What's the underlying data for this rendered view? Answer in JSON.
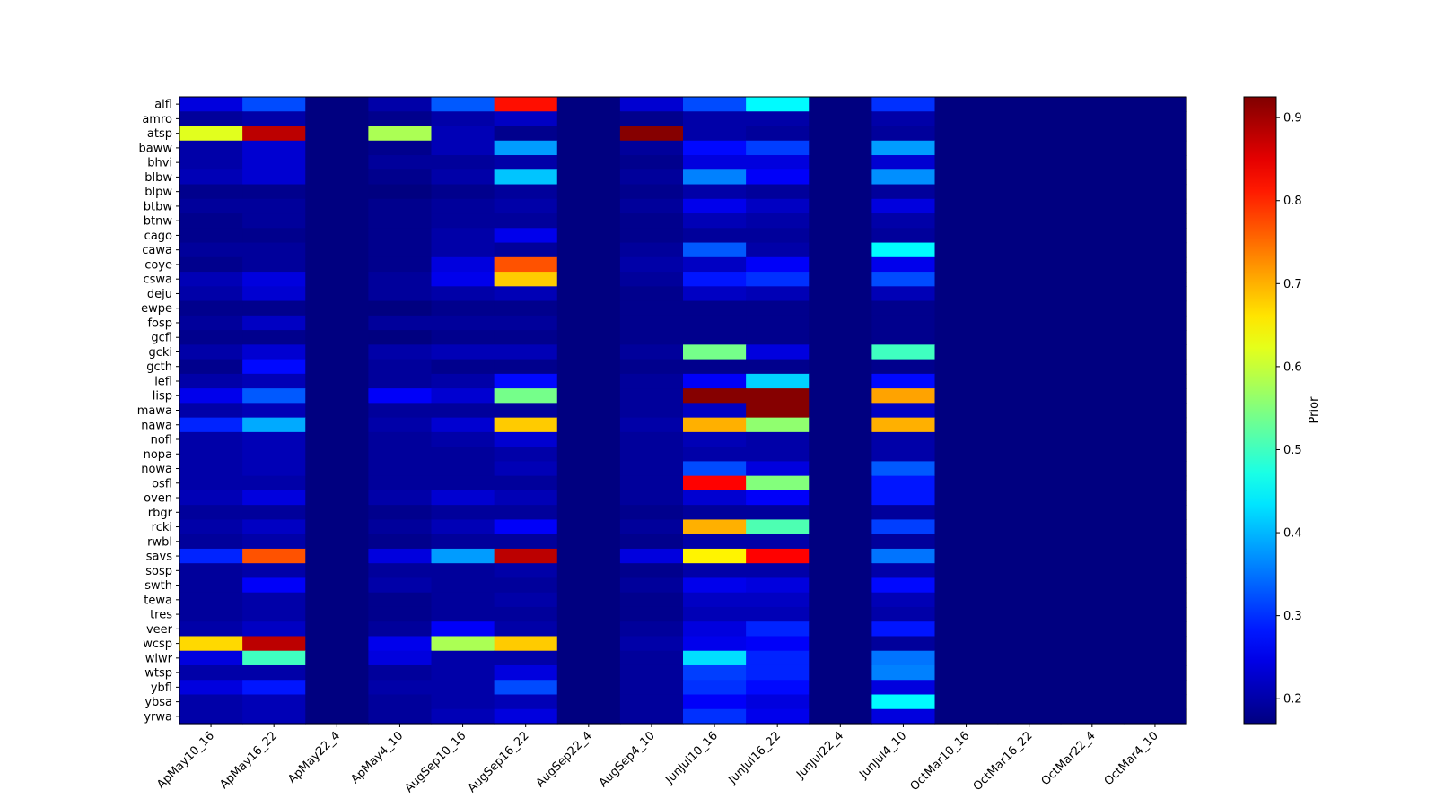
{
  "chart_data": {
    "type": "heatmap",
    "colormap": "jet",
    "colorbar": {
      "label": "Prior",
      "min": 0.17,
      "max": 0.925,
      "ticks": [
        0.2,
        0.3,
        0.4,
        0.5,
        0.6,
        0.7,
        0.8,
        0.9
      ],
      "placement": "right"
    },
    "columns": [
      "ApMay10_16",
      "ApMay16_22",
      "ApMay22_4",
      "ApMay4_10",
      "AugSep10_16",
      "AugSep16_22",
      "AugSep22_4",
      "AugSep4_10",
      "JunJul10_16",
      "JunJul16_22",
      "JunJul22_4",
      "JunJul4_10",
      "OctMar10_16",
      "OctMar16_22",
      "OctMar22_4",
      "OctMar4_10"
    ],
    "rows": [
      "alfl",
      "amro",
      "atsp",
      "baww",
      "bhvi",
      "blbw",
      "blpw",
      "btbw",
      "btnw",
      "cago",
      "cawa",
      "coye",
      "cswa",
      "deju",
      "ewpe",
      "fosp",
      "gcfl",
      "gcki",
      "gcth",
      "lefl",
      "lisp",
      "mawa",
      "nawa",
      "nofl",
      "nopa",
      "nowa",
      "osfl",
      "oven",
      "rbgr",
      "rcki",
      "rwbl",
      "savs",
      "sosp",
      "swth",
      "tewa",
      "tres",
      "veer",
      "wcsp",
      "wiwr",
      "wtsp",
      "ybfl",
      "ybsa",
      "yrwa"
    ],
    "values": [
      [
        0.24,
        0.32,
        0.17,
        0.2,
        0.33,
        0.82,
        0.17,
        0.23,
        0.32,
        0.45,
        0.17,
        0.3,
        0.17,
        0.17,
        0.17,
        0.17
      ],
      [
        0.19,
        0.2,
        0.17,
        0.18,
        0.2,
        0.22,
        0.17,
        0.18,
        0.2,
        0.2,
        0.17,
        0.2,
        0.17,
        0.17,
        0.17,
        0.17
      ],
      [
        0.62,
        0.88,
        0.17,
        0.58,
        0.21,
        0.18,
        0.17,
        0.92,
        0.2,
        0.19,
        0.17,
        0.19,
        0.17,
        0.17,
        0.17,
        0.17
      ],
      [
        0.2,
        0.23,
        0.17,
        0.18,
        0.21,
        0.38,
        0.17,
        0.19,
        0.27,
        0.31,
        0.17,
        0.38,
        0.17,
        0.17,
        0.17,
        0.17
      ],
      [
        0.2,
        0.23,
        0.17,
        0.19,
        0.19,
        0.2,
        0.17,
        0.18,
        0.24,
        0.24,
        0.17,
        0.23,
        0.17,
        0.17,
        0.17,
        0.17
      ],
      [
        0.21,
        0.23,
        0.17,
        0.18,
        0.2,
        0.41,
        0.17,
        0.19,
        0.36,
        0.26,
        0.17,
        0.37,
        0.17,
        0.17,
        0.17,
        0.17
      ],
      [
        0.18,
        0.18,
        0.17,
        0.17,
        0.18,
        0.19,
        0.17,
        0.18,
        0.2,
        0.19,
        0.17,
        0.19,
        0.17,
        0.17,
        0.17,
        0.17
      ],
      [
        0.19,
        0.19,
        0.17,
        0.18,
        0.19,
        0.2,
        0.17,
        0.19,
        0.25,
        0.22,
        0.17,
        0.24,
        0.17,
        0.17,
        0.17,
        0.17
      ],
      [
        0.18,
        0.19,
        0.17,
        0.18,
        0.19,
        0.19,
        0.17,
        0.18,
        0.21,
        0.2,
        0.17,
        0.2,
        0.17,
        0.17,
        0.17,
        0.17
      ],
      [
        0.18,
        0.18,
        0.17,
        0.18,
        0.2,
        0.25,
        0.17,
        0.18,
        0.19,
        0.19,
        0.17,
        0.19,
        0.17,
        0.17,
        0.17,
        0.17
      ],
      [
        0.19,
        0.19,
        0.17,
        0.18,
        0.2,
        0.19,
        0.17,
        0.19,
        0.33,
        0.2,
        0.17,
        0.45,
        0.17,
        0.17,
        0.17,
        0.17
      ],
      [
        0.18,
        0.19,
        0.17,
        0.18,
        0.24,
        0.77,
        0.17,
        0.2,
        0.22,
        0.26,
        0.17,
        0.25,
        0.17,
        0.17,
        0.17,
        0.17
      ],
      [
        0.21,
        0.24,
        0.17,
        0.19,
        0.25,
        0.68,
        0.17,
        0.19,
        0.28,
        0.3,
        0.17,
        0.32,
        0.17,
        0.17,
        0.17,
        0.17
      ],
      [
        0.2,
        0.23,
        0.17,
        0.19,
        0.2,
        0.21,
        0.17,
        0.18,
        0.22,
        0.21,
        0.17,
        0.21,
        0.17,
        0.17,
        0.17,
        0.17
      ],
      [
        0.18,
        0.18,
        0.17,
        0.17,
        0.18,
        0.18,
        0.17,
        0.18,
        0.18,
        0.18,
        0.17,
        0.18,
        0.17,
        0.17,
        0.17,
        0.17
      ],
      [
        0.19,
        0.22,
        0.17,
        0.19,
        0.19,
        0.19,
        0.17,
        0.18,
        0.18,
        0.18,
        0.17,
        0.18,
        0.17,
        0.17,
        0.17,
        0.17
      ],
      [
        0.18,
        0.18,
        0.17,
        0.17,
        0.18,
        0.18,
        0.17,
        0.18,
        0.18,
        0.18,
        0.17,
        0.18,
        0.17,
        0.17,
        0.17,
        0.17
      ],
      [
        0.2,
        0.23,
        0.17,
        0.2,
        0.21,
        0.21,
        0.17,
        0.19,
        0.54,
        0.24,
        0.17,
        0.5,
        0.17,
        0.17,
        0.17,
        0.17
      ],
      [
        0.18,
        0.27,
        0.17,
        0.19,
        0.18,
        0.18,
        0.17,
        0.18,
        0.18,
        0.18,
        0.17,
        0.18,
        0.17,
        0.17,
        0.17,
        0.17
      ],
      [
        0.2,
        0.21,
        0.17,
        0.19,
        0.2,
        0.27,
        0.17,
        0.19,
        0.26,
        0.42,
        0.17,
        0.27,
        0.17,
        0.17,
        0.17,
        0.17
      ],
      [
        0.25,
        0.33,
        0.17,
        0.26,
        0.23,
        0.54,
        0.17,
        0.19,
        0.92,
        0.92,
        0.17,
        0.71,
        0.17,
        0.17,
        0.17,
        0.17
      ],
      [
        0.2,
        0.21,
        0.17,
        0.19,
        0.19,
        0.19,
        0.17,
        0.19,
        0.22,
        0.92,
        0.17,
        0.22,
        0.17,
        0.17,
        0.17,
        0.17
      ],
      [
        0.29,
        0.39,
        0.17,
        0.2,
        0.23,
        0.68,
        0.17,
        0.2,
        0.7,
        0.56,
        0.17,
        0.7,
        0.17,
        0.17,
        0.17,
        0.17
      ],
      [
        0.2,
        0.21,
        0.17,
        0.19,
        0.2,
        0.23,
        0.17,
        0.19,
        0.21,
        0.2,
        0.17,
        0.2,
        0.17,
        0.17,
        0.17,
        0.17
      ],
      [
        0.2,
        0.21,
        0.17,
        0.19,
        0.19,
        0.2,
        0.17,
        0.19,
        0.2,
        0.2,
        0.17,
        0.2,
        0.17,
        0.17,
        0.17,
        0.17
      ],
      [
        0.2,
        0.21,
        0.17,
        0.19,
        0.19,
        0.21,
        0.17,
        0.19,
        0.32,
        0.24,
        0.17,
        0.33,
        0.17,
        0.17,
        0.17,
        0.17
      ],
      [
        0.2,
        0.2,
        0.17,
        0.19,
        0.19,
        0.19,
        0.17,
        0.19,
        0.83,
        0.55,
        0.17,
        0.28,
        0.17,
        0.17,
        0.17,
        0.17
      ],
      [
        0.21,
        0.24,
        0.17,
        0.2,
        0.23,
        0.21,
        0.17,
        0.19,
        0.23,
        0.26,
        0.17,
        0.28,
        0.17,
        0.17,
        0.17,
        0.17
      ],
      [
        0.19,
        0.19,
        0.17,
        0.18,
        0.19,
        0.19,
        0.17,
        0.18,
        0.19,
        0.19,
        0.17,
        0.19,
        0.17,
        0.17,
        0.17,
        0.17
      ],
      [
        0.2,
        0.22,
        0.17,
        0.19,
        0.21,
        0.26,
        0.17,
        0.19,
        0.7,
        0.51,
        0.17,
        0.31,
        0.17,
        0.17,
        0.17,
        0.17
      ],
      [
        0.19,
        0.2,
        0.17,
        0.18,
        0.19,
        0.19,
        0.17,
        0.18,
        0.2,
        0.2,
        0.17,
        0.19,
        0.17,
        0.17,
        0.17,
        0.17
      ],
      [
        0.29,
        0.77,
        0.17,
        0.24,
        0.38,
        0.88,
        0.17,
        0.24,
        0.65,
        0.83,
        0.17,
        0.35,
        0.17,
        0.17,
        0.17,
        0.17
      ],
      [
        0.19,
        0.2,
        0.17,
        0.19,
        0.19,
        0.2,
        0.17,
        0.18,
        0.2,
        0.2,
        0.17,
        0.2,
        0.17,
        0.17,
        0.17,
        0.17
      ],
      [
        0.19,
        0.26,
        0.17,
        0.2,
        0.19,
        0.19,
        0.17,
        0.19,
        0.25,
        0.24,
        0.17,
        0.27,
        0.17,
        0.17,
        0.17,
        0.17
      ],
      [
        0.19,
        0.2,
        0.17,
        0.18,
        0.19,
        0.2,
        0.17,
        0.18,
        0.22,
        0.22,
        0.17,
        0.21,
        0.17,
        0.17,
        0.17,
        0.17
      ],
      [
        0.19,
        0.2,
        0.17,
        0.18,
        0.19,
        0.19,
        0.17,
        0.18,
        0.21,
        0.21,
        0.17,
        0.2,
        0.17,
        0.17,
        0.17,
        0.17
      ],
      [
        0.2,
        0.22,
        0.17,
        0.19,
        0.26,
        0.2,
        0.17,
        0.19,
        0.24,
        0.29,
        0.17,
        0.28,
        0.17,
        0.17,
        0.17,
        0.17
      ],
      [
        0.67,
        0.88,
        0.17,
        0.25,
        0.58,
        0.68,
        0.17,
        0.2,
        0.25,
        0.26,
        0.17,
        0.19,
        0.17,
        0.17,
        0.17,
        0.17
      ],
      [
        0.24,
        0.5,
        0.17,
        0.24,
        0.2,
        0.2,
        0.17,
        0.19,
        0.43,
        0.29,
        0.17,
        0.35,
        0.17,
        0.17,
        0.17,
        0.17
      ],
      [
        0.2,
        0.2,
        0.17,
        0.19,
        0.2,
        0.24,
        0.17,
        0.19,
        0.31,
        0.29,
        0.17,
        0.36,
        0.17,
        0.17,
        0.17,
        0.17
      ],
      [
        0.24,
        0.28,
        0.17,
        0.2,
        0.2,
        0.32,
        0.17,
        0.19,
        0.3,
        0.27,
        0.17,
        0.24,
        0.17,
        0.17,
        0.17,
        0.17
      ],
      [
        0.2,
        0.21,
        0.17,
        0.19,
        0.2,
        0.21,
        0.17,
        0.19,
        0.26,
        0.24,
        0.17,
        0.45,
        0.17,
        0.17,
        0.17,
        0.17
      ],
      [
        0.2,
        0.21,
        0.17,
        0.19,
        0.21,
        0.24,
        0.17,
        0.19,
        0.3,
        0.25,
        0.17,
        0.24,
        0.17,
        0.17,
        0.17,
        0.17
      ]
    ]
  }
}
